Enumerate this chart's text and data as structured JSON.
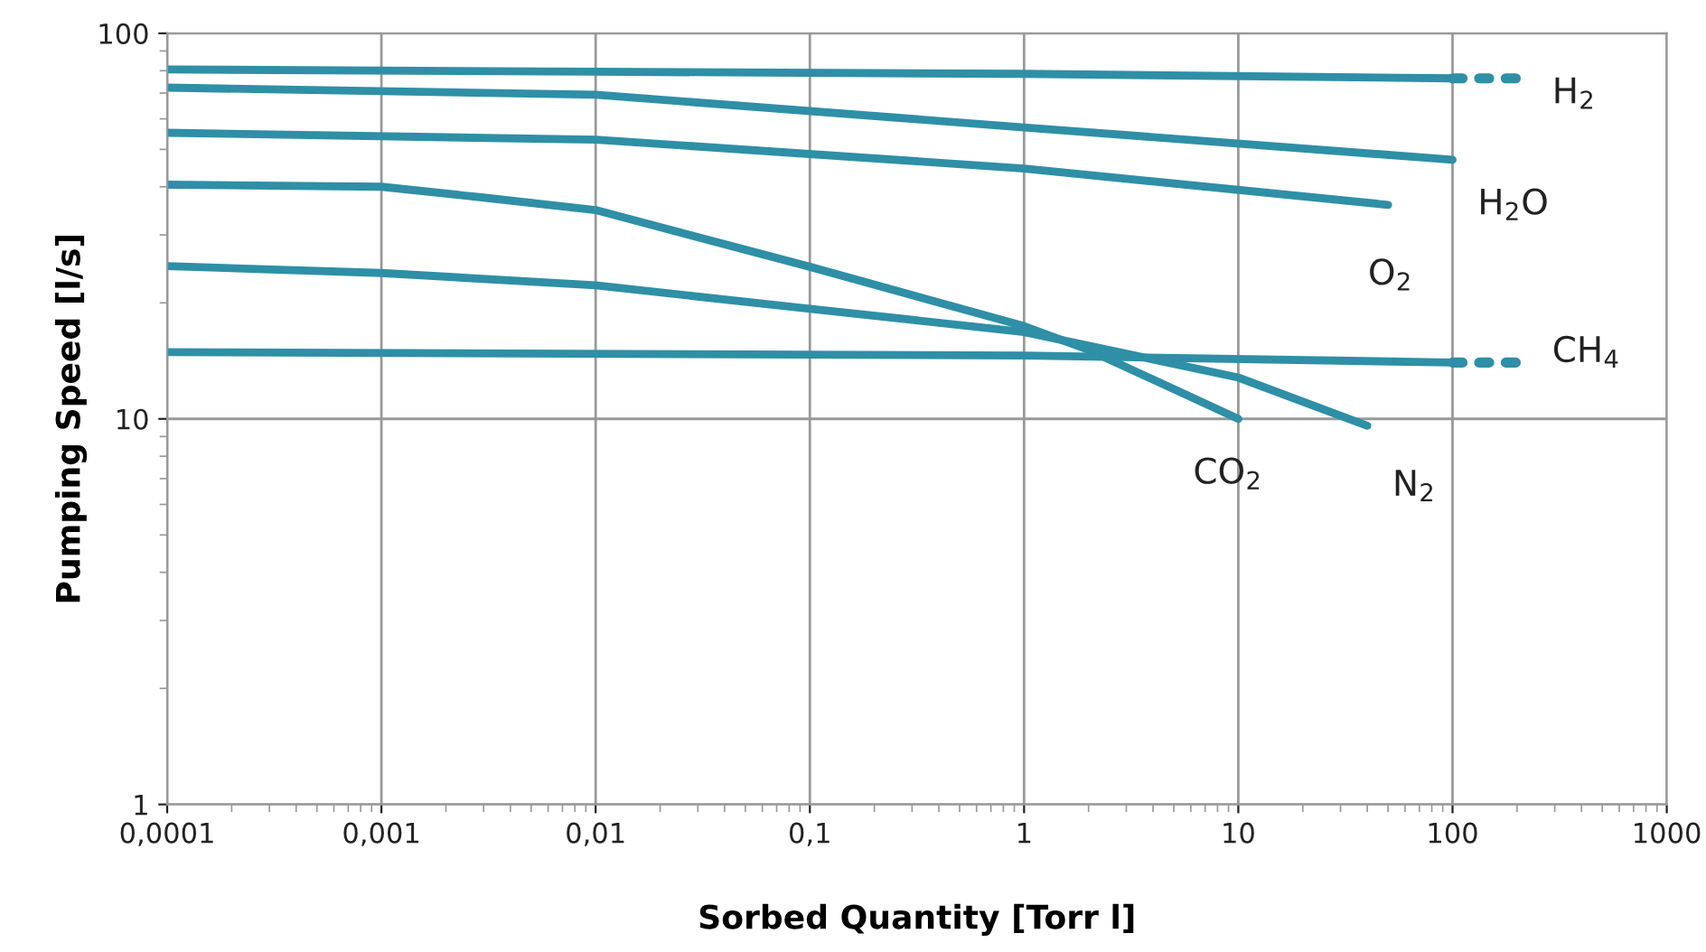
{
  "chart_data": {
    "type": "line",
    "xlabel": "Sorbed Quantity [Torr l]",
    "ylabel": "Pumping Speed [l/s]",
    "log": "xy",
    "xlim": [
      0.0001,
      1000
    ],
    "ylim": [
      1,
      100
    ],
    "xticks": [
      {
        "value": 0.0001,
        "label": "0,0001"
      },
      {
        "value": 0.001,
        "label": "0,001"
      },
      {
        "value": 0.01,
        "label": "0,01"
      },
      {
        "value": 0.1,
        "label": "0,1"
      },
      1,
      10,
      100,
      1000
    ],
    "yticks": [
      1,
      10,
      100
    ],
    "grid": true,
    "marker": "none",
    "line_style": "solid",
    "series": [
      {
        "name": "H$_{2}$",
        "color": "#2e8fa6",
        "x": [
          0.0001,
          0.01,
          1,
          100
        ],
        "values": [
          80.6,
          79.5,
          78.5,
          76.4
        ]
      },
      {
        "color": "#2e8fa6",
        "line_style": "dotted",
        "x": [
          100,
          200
        ],
        "values": [
          76.4,
          76.4
        ]
      },
      {
        "name": "H$_{2}$O",
        "color": "#2e8fa6",
        "x": [
          0.0001,
          0.01,
          1,
          100
        ],
        "values": [
          72.3,
          69.3,
          57,
          47
        ]
      },
      {
        "name": "O$_{2}$",
        "color": "#2e8fa6",
        "x": [
          0.0001,
          0.01,
          1,
          50
        ],
        "values": [
          55.2,
          53,
          44.6,
          35.9
        ]
      },
      {
        "name": "CH$_{4}$",
        "color": "#2e8fa6",
        "x": [
          0.0001,
          1,
          100
        ],
        "values": [
          14.9,
          14.6,
          14.0
        ]
      },
      {
        "color": "#2e8fa6",
        "line_style": "dotted",
        "x": [
          100,
          200
        ],
        "values": [
          14.0,
          14.0
        ]
      },
      {
        "name": "CO$_{2}$",
        "color": "#2e8fa6",
        "x": [
          0.0001,
          0.001,
          0.003,
          0.01,
          0.1,
          1,
          2,
          10
        ],
        "values": [
          40.5,
          40,
          37.5,
          34.8,
          24.8,
          17.4,
          15.1,
          10
        ]
      },
      {
        "name": "N$_{2}$",
        "color": "#2e8fa6",
        "x": [
          0.0001,
          0.001,
          0.01,
          0.1,
          1,
          10,
          40
        ],
        "values": [
          24.9,
          23.9,
          22.2,
          19.3,
          16.8,
          12.8,
          9.6
        ]
      }
    ]
  }
}
